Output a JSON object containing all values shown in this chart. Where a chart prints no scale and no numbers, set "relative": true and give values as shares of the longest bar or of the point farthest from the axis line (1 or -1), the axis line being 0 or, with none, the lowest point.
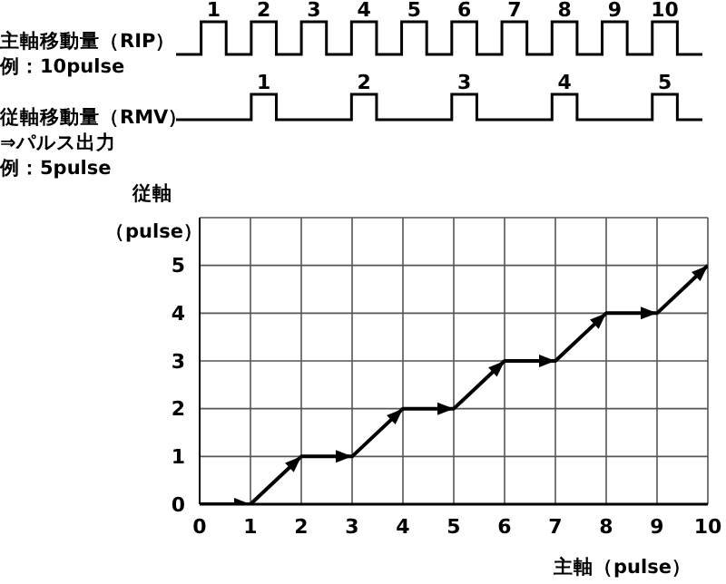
{
  "chart_data": [
    {
      "type": "step",
      "title": "主軸移動量（RIP）",
      "subtitle": "例：10pulse",
      "relative": true,
      "color": "#000000",
      "categories": [
        null,
        null,
        null,
        null,
        null,
        null,
        null,
        null,
        null,
        null,
        null,
        null,
        null,
        null,
        null,
        null,
        null,
        null,
        null,
        null,
        null,
        null
      ],
      "values": [
        0,
        1,
        0,
        1,
        0,
        1,
        0,
        1,
        0,
        1,
        0,
        1,
        0,
        1,
        0,
        1,
        0,
        1,
        0,
        1,
        0,
        0
      ],
      "annotations": [
        "1",
        "2",
        "3",
        "4",
        "5",
        "6",
        "7",
        "8",
        "9",
        "10"
      ]
    },
    {
      "type": "step",
      "title": "従軸移動量（RMV）",
      "subtitle": "⇒パルス出力",
      "relative": true,
      "color": "#000000",
      "categories": [
        null,
        null,
        null,
        null,
        null,
        null,
        null,
        null,
        null,
        null,
        null,
        null,
        null,
        null,
        null,
        null,
        null,
        null,
        null,
        null,
        null,
        null
      ],
      "values": [
        0,
        0,
        0,
        1,
        0,
        0,
        0,
        1,
        0,
        0,
        0,
        1,
        0,
        0,
        0,
        1,
        0,
        0,
        0,
        1,
        0,
        0
      ],
      "annotations": [
        "1",
        "2",
        "3",
        "4",
        "5",
        "例：5pulse"
      ]
    },
    {
      "type": "line",
      "xlabel": "主軸（pulse）",
      "ylabel": "従軸（pulse）",
      "color": "#000000",
      "grid": true,
      "x": [
        0,
        1,
        2,
        3,
        4,
        5,
        6,
        7,
        8,
        9,
        10
      ],
      "values": [
        0,
        0,
        1,
        1,
        2,
        2,
        3,
        3,
        4,
        4,
        5
      ],
      "xlim": [
        0,
        10
      ],
      "xticks": [
        0,
        1,
        2,
        3,
        4,
        5,
        6,
        7,
        8,
        9,
        10
      ],
      "ylim": [
        0,
        6
      ],
      "yticks": [
        0,
        1,
        2,
        3,
        4,
        5,
        {
          "value": 6,
          "label": null
        }
      ]
    }
  ]
}
